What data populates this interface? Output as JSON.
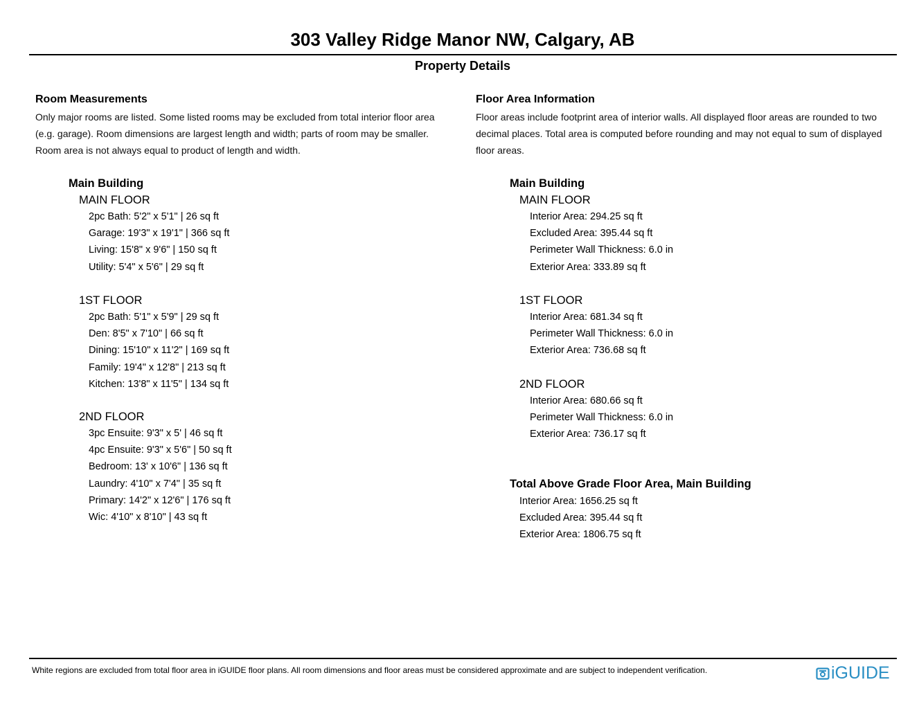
{
  "header": {
    "title": "303 Valley Ridge Manor NW, Calgary, AB",
    "subtitle": "Property Details"
  },
  "room_measurements": {
    "heading": "Room Measurements",
    "description": [
      "Only major rooms are listed. Some listed rooms may be excluded from total interior floor area",
      "(e.g. garage). Room dimensions are largest length and width; parts of room may be smaller.",
      "Room area is not always equal to product of length and width."
    ],
    "building": "Main Building",
    "floors": [
      {
        "name": "MAIN FLOOR",
        "rooms": [
          "2pc Bath: 5'2\" x 5'1\" | 26 sq ft",
          "Garage: 19'3\" x 19'1\" | 366 sq ft",
          "Living: 15'8\" x 9'6\" | 150 sq ft",
          "Utility: 5'4\" x 5'6\" | 29 sq ft"
        ]
      },
      {
        "name": "1ST FLOOR",
        "rooms": [
          "2pc Bath: 5'1\" x 5'9\" | 29 sq ft",
          "Den: 8'5\" x 7'10\" | 66 sq ft",
          "Dining: 15'10\" x 11'2\" | 169 sq ft",
          "Family: 19'4\" x 12'8\" | 213 sq ft",
          "Kitchen: 13'8\" x 11'5\" | 134 sq ft"
        ]
      },
      {
        "name": "2ND FLOOR",
        "rooms": [
          "3pc Ensuite: 9'3\" x 5' | 46 sq ft",
          "4pc Ensuite: 9'3\" x 5'6\" | 50 sq ft",
          "Bedroom: 13' x 10'6\" | 136 sq ft",
          "Laundry: 4'10\" x 7'4\" | 35 sq ft",
          "Primary: 14'2\" x 12'6\" | 176 sq ft",
          "Wic: 4'10\" x 8'10\" | 43 sq ft"
        ]
      }
    ]
  },
  "floor_area": {
    "heading": "Floor Area Information",
    "description": [
      "Floor areas include footprint area of interior walls. All displayed floor areas are rounded to two",
      "decimal places. Total area is computed before rounding and may not equal to sum of displayed",
      "floor areas."
    ],
    "building": "Main Building",
    "floors": [
      {
        "name": "MAIN FLOOR",
        "rows": [
          "Interior Area: 294.25 sq ft",
          "Excluded Area: 395.44 sq ft",
          "Perimeter Wall Thickness: 6.0 in",
          "Exterior Area: 333.89 sq ft"
        ]
      },
      {
        "name": "1ST FLOOR",
        "rows": [
          "Interior Area: 681.34 sq ft",
          "Perimeter Wall Thickness: 6.0 in",
          "Exterior Area: 736.68 sq ft"
        ]
      },
      {
        "name": "2ND FLOOR",
        "rows": [
          "Interior Area: 680.66 sq ft",
          "Perimeter Wall Thickness: 6.0 in",
          "Exterior Area: 736.17 sq ft"
        ]
      }
    ],
    "total": {
      "heading": "Total Above Grade Floor Area, Main Building",
      "rows": [
        "Interior Area: 1656.25 sq ft",
        "Excluded Area: 395.44 sq ft",
        "Exterior Area: 1806.75 sq ft"
      ]
    }
  },
  "footer": {
    "note": "White regions are excluded from total floor area in iGUIDE floor plans. All room dimensions and floor areas must be considered approximate and are subject to independent verification.",
    "logo_text": "iGUIDE",
    "brand_color": "#2a8fc4"
  }
}
